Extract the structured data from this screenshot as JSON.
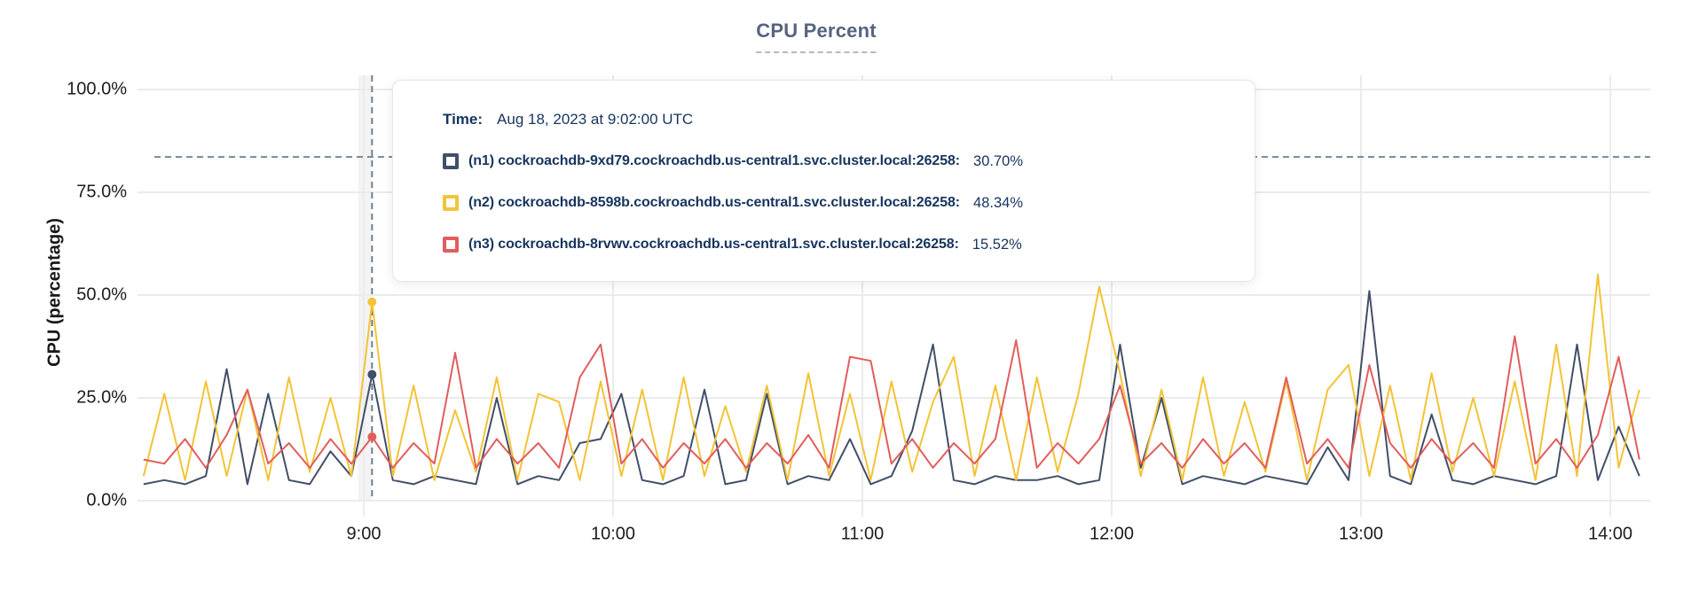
{
  "title": "CPU Percent",
  "y_axis_title": "CPU (percentage)",
  "tooltip": {
    "time_label": "Time:",
    "time_value": "Aug 18, 2023 at 9:02:00 UTC",
    "rows": [
      {
        "label": "(n1) cockroachdb-9xd79.cockroachdb.us-central1.svc.cluster.local:26258:",
        "value": "30.70%",
        "color": "#414f68"
      },
      {
        "label": "(n2) cockroachdb-8598b.cockroachdb.us-central1.svc.cluster.local:26258:",
        "value": "48.34%",
        "color": "#f0c53d"
      },
      {
        "label": "(n3) cockroachdb-8rvwv.cockroachdb.us-central1.svc.cluster.local:26258:",
        "value": "15.52%",
        "color": "#e republican"
      }
    ]
  },
  "colors": {
    "n1": "#414f68",
    "n2": "#f3c336",
    "n3": "#e25d5d",
    "grid": "#ebebeb",
    "dashed": "#5f7389",
    "tooltip_text": "#16345d",
    "title": "#56647e"
  },
  "chart_data": {
    "type": "line",
    "title": "CPU Percent",
    "xlabel": "",
    "ylabel": "CPU (percentage)",
    "ylim": [
      0,
      100
    ],
    "grid": true,
    "y_ticks": [
      {
        "value": 0,
        "label": "0.0%"
      },
      {
        "value": 25,
        "label": "25.0%"
      },
      {
        "value": 50,
        "label": "50.0%"
      },
      {
        "value": 75,
        "label": "75.0%"
      },
      {
        "value": 100,
        "label": "100.0%"
      }
    ],
    "x_ticks": [
      {
        "hour": 9,
        "label": "9:00"
      },
      {
        "hour": 10,
        "label": "10:00"
      },
      {
        "hour": 11,
        "label": "11:00"
      },
      {
        "hour": 12,
        "label": "12:00"
      },
      {
        "hour": 13,
        "label": "13:00"
      },
      {
        "hour": 14,
        "label": "14:00"
      }
    ],
    "threshold_percent": 83.6,
    "hover": {
      "hour": 9.0333,
      "time": "Aug 18, 2023 at 9:02:00 UTC",
      "values": [
        30.7,
        48.34,
        15.52
      ]
    },
    "t_start_hour": 8.1167,
    "interval_minutes": 5,
    "series": [
      {
        "name": "(n1) cockroachdb-9xd79.cockroachdb.us-central1.svc.cluster.local:26258",
        "color": "#414f68",
        "hover_value": 30.7,
        "values": [
          4,
          5,
          4,
          6,
          32,
          4,
          26,
          5,
          4,
          12,
          6,
          30.7,
          5,
          4,
          6,
          5,
          4,
          25,
          4,
          6,
          5,
          14,
          15,
          26,
          5,
          4,
          6,
          27,
          4,
          5,
          26,
          4,
          6,
          5,
          15,
          4,
          6,
          17,
          38,
          5,
          4,
          6,
          5,
          5,
          6,
          4,
          5,
          38,
          8,
          25,
          4,
          6,
          5,
          4,
          6,
          5,
          4,
          13,
          5,
          51,
          6,
          4,
          21,
          5,
          4,
          6,
          5,
          4,
          6,
          38,
          5,
          18,
          6
        ]
      },
      {
        "name": "(n2) cockroachdb-8598b.cockroachdb.us-central1.svc.cluster.local:26258",
        "color": "#f3c336",
        "hover_value": 48.34,
        "values": [
          6,
          26,
          5,
          29,
          6,
          27,
          5,
          30,
          7,
          25,
          6,
          48.3,
          6,
          28,
          5,
          22,
          7,
          30,
          5,
          26,
          24,
          5,
          29,
          6,
          27,
          5,
          30,
          6,
          23,
          7,
          28,
          5,
          31,
          6,
          26,
          5,
          29,
          7,
          24,
          35,
          6,
          28,
          5,
          30,
          7,
          26,
          52,
          31,
          6,
          27,
          5,
          30,
          6,
          24,
          7,
          29,
          5,
          27,
          33,
          6,
          28,
          5,
          31,
          7,
          25,
          6,
          29,
          5,
          38,
          6,
          55,
          8,
          27
        ]
      },
      {
        "name": "(n3) cockroachdb-8rvwv.cockroachdb.us-central1.svc.cluster.local:26258",
        "color": "#e25d5d",
        "hover_value": 15.52,
        "values": [
          10,
          9,
          15,
          8,
          16,
          27,
          9,
          14,
          8,
          15,
          9,
          15.5,
          8,
          14,
          9,
          36,
          8,
          15,
          9,
          14,
          8,
          30,
          38,
          9,
          15,
          8,
          14,
          9,
          15,
          8,
          14,
          9,
          16,
          8,
          35,
          34,
          9,
          15,
          8,
          14,
          9,
          15,
          39,
          8,
          14,
          9,
          15,
          28,
          9,
          14,
          8,
          15,
          9,
          14,
          8,
          30,
          9,
          15,
          8,
          33,
          14,
          8,
          15,
          9,
          14,
          8,
          40,
          9,
          15,
          8,
          16,
          35,
          10
        ]
      }
    ]
  }
}
